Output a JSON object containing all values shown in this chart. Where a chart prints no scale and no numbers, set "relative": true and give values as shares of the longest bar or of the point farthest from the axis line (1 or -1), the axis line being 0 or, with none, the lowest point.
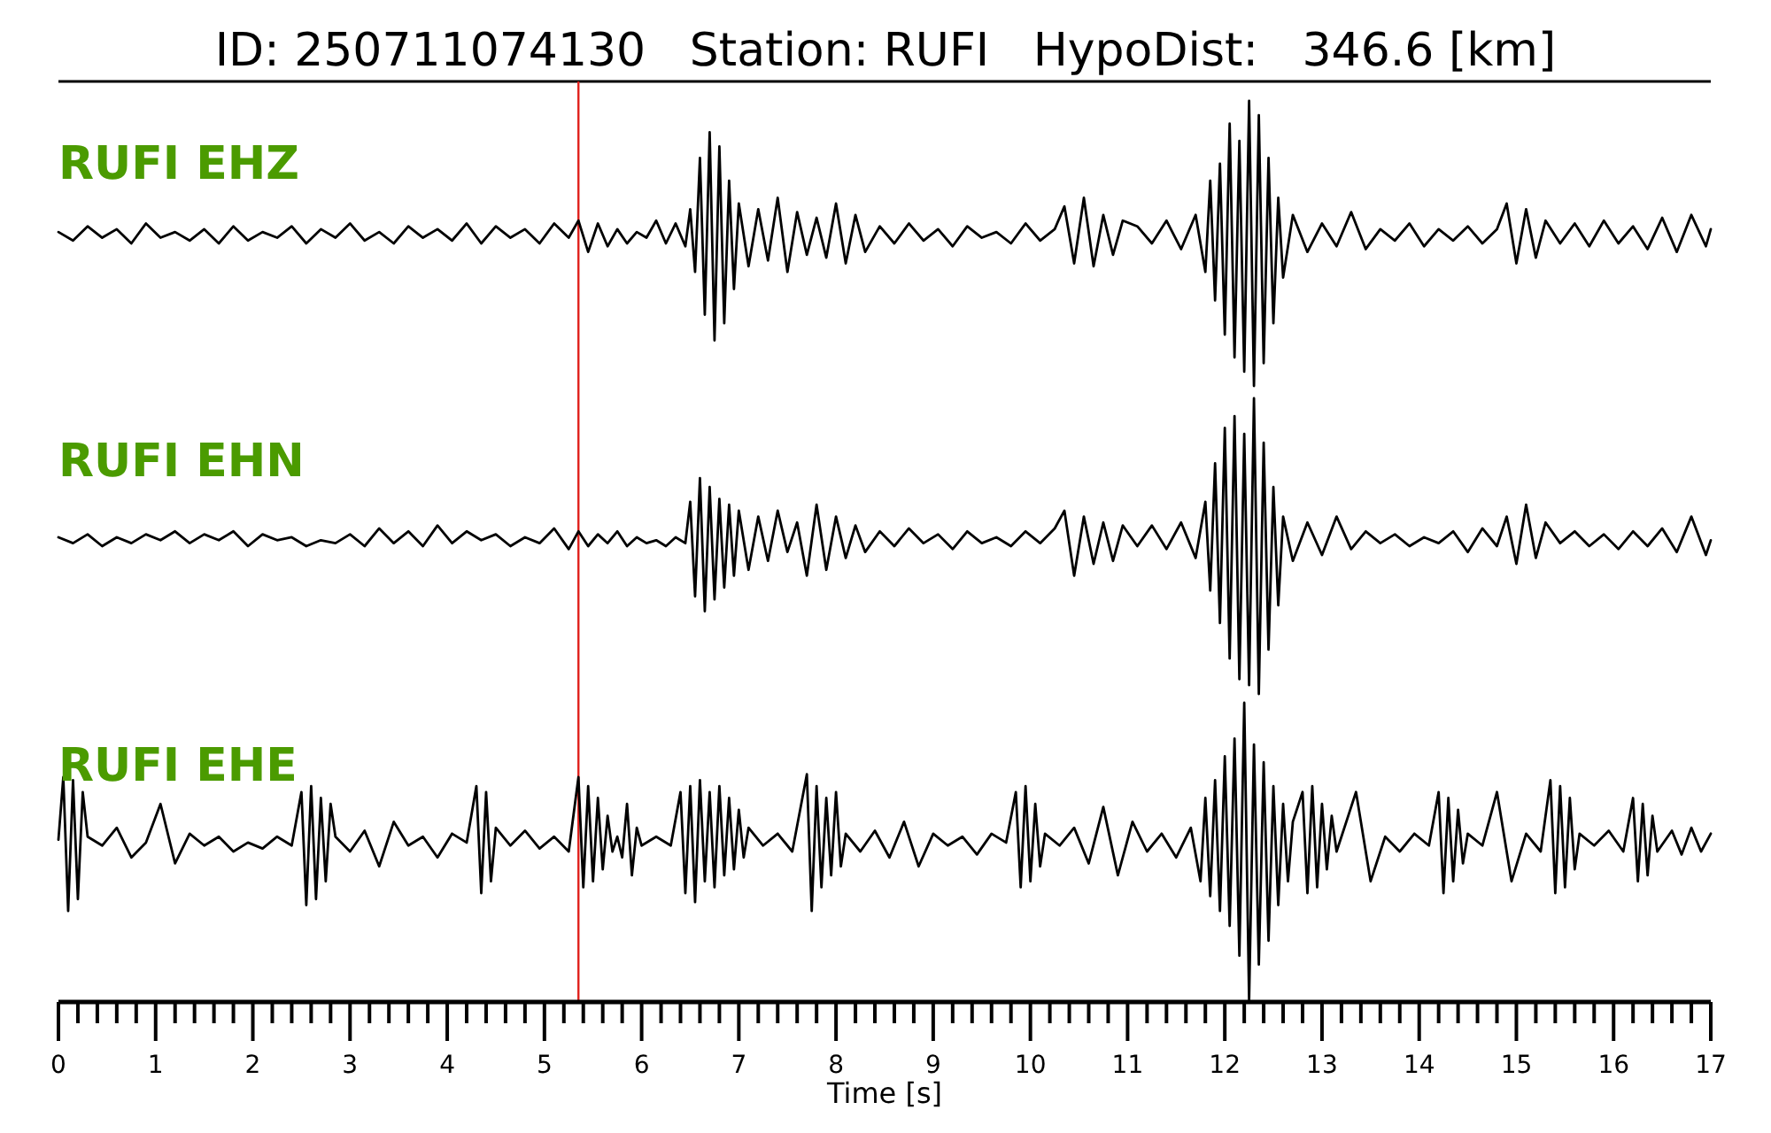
{
  "chart_data": [
    {
      "type": "line",
      "relative": true,
      "title": "RUFI EHZ",
      "annotations": [
        "ID: 250711074130   Station: RUFI   HypoDist:   346.6 [km]"
      ],
      "xlim": [
        0,
        17
      ],
      "tick_labels": false,
      "ref_lines": [
        {
          "axis": "x",
          "value": 5.35,
          "color": "#e0211d"
        }
      ],
      "x": [
        0,
        0.15,
        0.3,
        0.45,
        0.6,
        0.75,
        0.9,
        1.05,
        1.2,
        1.35,
        1.5,
        1.65,
        1.8,
        1.95,
        2.1,
        2.25,
        2.4,
        2.55,
        2.7,
        2.85,
        3.0,
        3.15,
        3.3,
        3.45,
        3.6,
        3.75,
        3.9,
        4.05,
        4.2,
        4.35,
        4.5,
        4.65,
        4.8,
        4.95,
        5.1,
        5.25,
        5.35,
        5.45,
        5.55,
        5.65,
        5.75,
        5.85,
        5.95,
        6.05,
        6.15,
        6.25,
        6.35,
        6.45,
        6.5,
        6.55,
        6.6,
        6.65,
        6.7,
        6.75,
        6.8,
        6.85,
        6.9,
        6.95,
        7.0,
        7.1,
        7.2,
        7.3,
        7.4,
        7.5,
        7.6,
        7.7,
        7.8,
        7.9,
        8.0,
        8.1,
        8.2,
        8.3,
        8.45,
        8.6,
        8.75,
        8.9,
        9.05,
        9.2,
        9.35,
        9.5,
        9.65,
        9.8,
        9.95,
        10.1,
        10.25,
        10.35,
        10.45,
        10.55,
        10.65,
        10.75,
        10.85,
        10.95,
        11.1,
        11.25,
        11.4,
        11.55,
        11.7,
        11.8,
        11.85,
        11.9,
        11.95,
        12.0,
        12.05,
        12.1,
        12.15,
        12.2,
        12.25,
        12.3,
        12.35,
        12.4,
        12.45,
        12.5,
        12.55,
        12.6,
        12.7,
        12.85,
        13.0,
        13.15,
        13.3,
        13.45,
        13.6,
        13.75,
        13.9,
        14.05,
        14.2,
        14.35,
        14.5,
        14.65,
        14.8,
        14.9,
        15.0,
        15.1,
        15.2,
        15.3,
        15.45,
        15.6,
        15.75,
        15.9,
        16.05,
        16.2,
        16.35,
        16.5,
        16.65,
        16.8,
        16.95,
        17
      ],
      "series": [
        {
          "color": "#000000",
          "values": [
            0.54,
            0.51,
            0.56,
            0.52,
            0.55,
            0.5,
            0.57,
            0.52,
            0.54,
            0.51,
            0.55,
            0.5,
            0.56,
            0.51,
            0.54,
            0.52,
            0.56,
            0.5,
            0.55,
            0.52,
            0.57,
            0.51,
            0.54,
            0.5,
            0.56,
            0.52,
            0.55,
            0.51,
            0.57,
            0.5,
            0.56,
            0.52,
            0.55,
            0.5,
            0.57,
            0.52,
            0.58,
            0.47,
            0.57,
            0.49,
            0.55,
            0.5,
            0.54,
            0.52,
            0.58,
            0.5,
            0.57,
            0.49,
            0.62,
            0.4,
            0.8,
            0.25,
            0.89,
            0.16,
            0.84,
            0.22,
            0.72,
            0.34,
            0.64,
            0.42,
            0.62,
            0.44,
            0.66,
            0.4,
            0.61,
            0.46,
            0.59,
            0.45,
            0.64,
            0.43,
            0.6,
            0.47,
            0.56,
            0.5,
            0.57,
            0.51,
            0.55,
            0.49,
            0.56,
            0.52,
            0.54,
            0.5,
            0.57,
            0.51,
            0.55,
            0.63,
            0.43,
            0.66,
            0.42,
            0.6,
            0.46,
            0.58,
            0.56,
            0.5,
            0.58,
            0.48,
            0.6,
            0.4,
            0.72,
            0.3,
            0.78,
            0.18,
            0.92,
            0.1,
            0.86,
            0.05,
            1.0,
            0.0,
            0.95,
            0.08,
            0.8,
            0.22,
            0.66,
            0.38,
            0.6,
            0.47,
            0.57,
            0.49,
            0.61,
            0.48,
            0.55,
            0.51,
            0.57,
            0.49,
            0.55,
            0.51,
            0.56,
            0.5,
            0.55,
            0.64,
            0.43,
            0.62,
            0.45,
            0.58,
            0.5,
            0.57,
            0.49,
            0.58,
            0.5,
            0.56,
            0.48,
            0.59,
            0.47,
            0.6,
            0.49,
            0.55
          ]
        }
      ]
    },
    {
      "type": "line",
      "relative": true,
      "title": "RUFI EHN",
      "xlim": [
        0,
        17
      ],
      "tick_labels": false,
      "ref_lines": [
        {
          "axis": "x",
          "value": 5.35,
          "color": "#e0211d"
        }
      ],
      "x": [
        0,
        0.15,
        0.3,
        0.45,
        0.6,
        0.75,
        0.9,
        1.05,
        1.2,
        1.35,
        1.5,
        1.65,
        1.8,
        1.95,
        2.1,
        2.25,
        2.4,
        2.55,
        2.7,
        2.85,
        3.0,
        3.15,
        3.3,
        3.45,
        3.6,
        3.75,
        3.9,
        4.05,
        4.2,
        4.35,
        4.5,
        4.65,
        4.8,
        4.95,
        5.1,
        5.25,
        5.35,
        5.45,
        5.55,
        5.65,
        5.75,
        5.85,
        5.95,
        6.05,
        6.15,
        6.25,
        6.35,
        6.45,
        6.5,
        6.55,
        6.6,
        6.65,
        6.7,
        6.75,
        6.8,
        6.85,
        6.9,
        6.95,
        7.0,
        7.1,
        7.2,
        7.3,
        7.4,
        7.5,
        7.6,
        7.7,
        7.8,
        7.9,
        8.0,
        8.1,
        8.2,
        8.3,
        8.45,
        8.6,
        8.75,
        8.9,
        9.05,
        9.2,
        9.35,
        9.5,
        9.65,
        9.8,
        9.95,
        10.1,
        10.25,
        10.35,
        10.45,
        10.55,
        10.65,
        10.75,
        10.85,
        10.95,
        11.1,
        11.25,
        11.4,
        11.55,
        11.7,
        11.8,
        11.85,
        11.9,
        11.95,
        12.0,
        12.05,
        12.1,
        12.15,
        12.2,
        12.25,
        12.3,
        12.35,
        12.4,
        12.45,
        12.5,
        12.55,
        12.6,
        12.7,
        12.85,
        13.0,
        13.15,
        13.3,
        13.45,
        13.6,
        13.75,
        13.9,
        14.05,
        14.2,
        14.35,
        14.5,
        14.65,
        14.8,
        14.9,
        15.0,
        15.1,
        15.2,
        15.3,
        15.45,
        15.6,
        15.75,
        15.9,
        16.05,
        16.2,
        16.35,
        16.5,
        16.65,
        16.8,
        16.95,
        17
      ],
      "series": [
        {
          "color": "#000000",
          "values": [
            0.53,
            0.51,
            0.54,
            0.5,
            0.53,
            0.51,
            0.54,
            0.52,
            0.55,
            0.51,
            0.54,
            0.52,
            0.55,
            0.5,
            0.54,
            0.52,
            0.53,
            0.5,
            0.52,
            0.51,
            0.54,
            0.5,
            0.56,
            0.51,
            0.55,
            0.5,
            0.57,
            0.51,
            0.55,
            0.52,
            0.54,
            0.5,
            0.53,
            0.51,
            0.56,
            0.49,
            0.55,
            0.5,
            0.54,
            0.51,
            0.55,
            0.5,
            0.53,
            0.51,
            0.52,
            0.5,
            0.53,
            0.51,
            0.65,
            0.33,
            0.73,
            0.28,
            0.7,
            0.32,
            0.66,
            0.36,
            0.64,
            0.4,
            0.62,
            0.42,
            0.6,
            0.45,
            0.62,
            0.48,
            0.58,
            0.4,
            0.64,
            0.42,
            0.6,
            0.46,
            0.57,
            0.48,
            0.55,
            0.5,
            0.56,
            0.51,
            0.54,
            0.49,
            0.55,
            0.51,
            0.53,
            0.5,
            0.55,
            0.51,
            0.56,
            0.62,
            0.4,
            0.6,
            0.44,
            0.58,
            0.45,
            0.57,
            0.5,
            0.57,
            0.49,
            0.58,
            0.46,
            0.65,
            0.35,
            0.78,
            0.24,
            0.9,
            0.12,
            0.94,
            0.05,
            0.88,
            0.03,
            1.0,
            0.0,
            0.85,
            0.15,
            0.7,
            0.3,
            0.6,
            0.45,
            0.58,
            0.47,
            0.6,
            0.49,
            0.55,
            0.51,
            0.54,
            0.5,
            0.53,
            0.51,
            0.55,
            0.48,
            0.56,
            0.5,
            0.6,
            0.44,
            0.64,
            0.46,
            0.58,
            0.51,
            0.55,
            0.5,
            0.54,
            0.49,
            0.55,
            0.5,
            0.56,
            0.48,
            0.6,
            0.47,
            0.52
          ]
        }
      ]
    },
    {
      "type": "line",
      "relative": true,
      "title": "RUFI EHE",
      "xlabel": "Time [s]",
      "xlim": [
        0,
        17
      ],
      "tick_labels": "x",
      "xticks": [
        0,
        {
          "value": 0.2,
          "label": null
        },
        {
          "value": 0.4,
          "label": null
        },
        {
          "value": 0.6,
          "label": null
        },
        {
          "value": 0.8,
          "label": null
        },
        1,
        {
          "value": 1.2,
          "label": null
        },
        {
          "value": 1.4,
          "label": null
        },
        {
          "value": 1.6,
          "label": null
        },
        {
          "value": 1.8,
          "label": null
        },
        2,
        {
          "value": 2.2,
          "label": null
        },
        {
          "value": 2.4,
          "label": null
        },
        {
          "value": 2.6,
          "label": null
        },
        {
          "value": 2.8,
          "label": null
        },
        3,
        {
          "value": 3.2,
          "label": null
        },
        {
          "value": 3.4,
          "label": null
        },
        {
          "value": 3.6,
          "label": null
        },
        {
          "value": 3.8,
          "label": null
        },
        4,
        {
          "value": 4.2,
          "label": null
        },
        {
          "value": 4.4,
          "label": null
        },
        {
          "value": 4.6,
          "label": null
        },
        {
          "value": 4.8,
          "label": null
        },
        5,
        {
          "value": 5.2,
          "label": null
        },
        {
          "value": 5.4,
          "label": null
        },
        {
          "value": 5.6,
          "label": null
        },
        {
          "value": 5.8,
          "label": null
        },
        6,
        {
          "value": 6.2,
          "label": null
        },
        {
          "value": 6.4,
          "label": null
        },
        {
          "value": 6.6,
          "label": null
        },
        {
          "value": 6.8,
          "label": null
        },
        7,
        {
          "value": 7.2,
          "label": null
        },
        {
          "value": 7.4,
          "label": null
        },
        {
          "value": 7.6,
          "label": null
        },
        {
          "value": 7.8,
          "label": null
        },
        8,
        {
          "value": 8.2,
          "label": null
        },
        {
          "value": 8.4,
          "label": null
        },
        {
          "value": 8.6,
          "label": null
        },
        {
          "value": 8.8,
          "label": null
        },
        9,
        {
          "value": 9.2,
          "label": null
        },
        {
          "value": 9.4,
          "label": null
        },
        {
          "value": 9.6,
          "label": null
        },
        {
          "value": 9.8,
          "label": null
        },
        10,
        {
          "value": 10.2,
          "label": null
        },
        {
          "value": 10.4,
          "label": null
        },
        {
          "value": 10.6,
          "label": null
        },
        {
          "value": 10.8,
          "label": null
        },
        11,
        {
          "value": 11.2,
          "label": null
        },
        {
          "value": 11.4,
          "label": null
        },
        {
          "value": 11.6,
          "label": null
        },
        {
          "value": 11.8,
          "label": null
        },
        12,
        {
          "value": 12.2,
          "label": null
        },
        {
          "value": 12.4,
          "label": null
        },
        {
          "value": 12.6,
          "label": null
        },
        {
          "value": 12.8,
          "label": null
        },
        13,
        {
          "value": 13.2,
          "label": null
        },
        {
          "value": 13.4,
          "label": null
        },
        {
          "value": 13.6,
          "label": null
        },
        {
          "value": 13.8,
          "label": null
        },
        14,
        {
          "value": 14.2,
          "label": null
        },
        {
          "value": 14.4,
          "label": null
        },
        {
          "value": 14.6,
          "label": null
        },
        {
          "value": 14.8,
          "label": null
        },
        15,
        {
          "value": 15.2,
          "label": null
        },
        {
          "value": 15.4,
          "label": null
        },
        {
          "value": 15.6,
          "label": null
        },
        {
          "value": 15.8,
          "label": null
        },
        16,
        {
          "value": 16.2,
          "label": null
        },
        {
          "value": 16.4,
          "label": null
        },
        {
          "value": 16.6,
          "label": null
        },
        {
          "value": 16.8,
          "label": null
        },
        17
      ],
      "ref_lines": [
        {
          "axis": "x",
          "value": 5.35,
          "color": "#e0211d"
        }
      ],
      "x": [
        0,
        0.05,
        0.1,
        0.15,
        0.2,
        0.25,
        0.3,
        0.45,
        0.6,
        0.75,
        0.9,
        1.05,
        1.2,
        1.35,
        1.5,
        1.65,
        1.8,
        1.95,
        2.1,
        2.25,
        2.4,
        2.5,
        2.55,
        2.6,
        2.65,
        2.7,
        2.75,
        2.8,
        2.85,
        3.0,
        3.15,
        3.3,
        3.45,
        3.6,
        3.75,
        3.9,
        4.05,
        4.2,
        4.3,
        4.35,
        4.4,
        4.45,
        4.5,
        4.65,
        4.8,
        4.95,
        5.1,
        5.25,
        5.35,
        5.4,
        5.45,
        5.5,
        5.55,
        5.6,
        5.65,
        5.7,
        5.75,
        5.8,
        5.85,
        5.9,
        5.95,
        6.0,
        6.15,
        6.3,
        6.4,
        6.45,
        6.5,
        6.55,
        6.6,
        6.65,
        6.7,
        6.75,
        6.8,
        6.85,
        6.9,
        6.95,
        7.0,
        7.05,
        7.1,
        7.25,
        7.4,
        7.55,
        7.7,
        7.75,
        7.8,
        7.85,
        7.9,
        7.95,
        8.0,
        8.05,
        8.1,
        8.25,
        8.4,
        8.55,
        8.7,
        8.85,
        9.0,
        9.15,
        9.3,
        9.45,
        9.6,
        9.75,
        9.85,
        9.9,
        9.95,
        10.0,
        10.05,
        10.1,
        10.15,
        10.3,
        10.45,
        10.6,
        10.75,
        10.9,
        11.05,
        11.2,
        11.35,
        11.5,
        11.65,
        11.75,
        11.8,
        11.85,
        11.9,
        11.95,
        12.0,
        12.05,
        12.1,
        12.15,
        12.2,
        12.25,
        12.3,
        12.35,
        12.4,
        12.45,
        12.5,
        12.55,
        12.6,
        12.65,
        12.7,
        12.8,
        12.85,
        12.9,
        12.95,
        13.0,
        13.05,
        13.1,
        13.15,
        13.2,
        13.35,
        13.5,
        13.65,
        13.8,
        13.95,
        14.1,
        14.2,
        14.25,
        14.3,
        14.35,
        14.4,
        14.45,
        14.5,
        14.65,
        14.8,
        14.95,
        15.1,
        15.25,
        15.35,
        15.4,
        15.45,
        15.5,
        15.55,
        15.6,
        15.65,
        15.8,
        15.95,
        16.1,
        16.2,
        16.25,
        16.3,
        16.35,
        16.4,
        16.45,
        16.6,
        16.7,
        16.8,
        16.9,
        17.0
      ],
      "series": [
        {
          "color": "#000000",
          "values": [
            0.54,
            0.75,
            0.3,
            0.74,
            0.34,
            0.7,
            0.55,
            0.52,
            0.58,
            0.48,
            0.53,
            0.66,
            0.46,
            0.56,
            0.52,
            0.55,
            0.5,
            0.53,
            0.51,
            0.55,
            0.52,
            0.7,
            0.32,
            0.72,
            0.34,
            0.68,
            0.4,
            0.66,
            0.55,
            0.5,
            0.57,
            0.45,
            0.6,
            0.52,
            0.55,
            0.48,
            0.56,
            0.53,
            0.72,
            0.36,
            0.7,
            0.4,
            0.58,
            0.52,
            0.57,
            0.51,
            0.55,
            0.5,
            0.75,
            0.38,
            0.72,
            0.4,
            0.68,
            0.44,
            0.62,
            0.5,
            0.55,
            0.48,
            0.66,
            0.42,
            0.58,
            0.52,
            0.55,
            0.52,
            0.7,
            0.36,
            0.72,
            0.33,
            0.74,
            0.4,
            0.7,
            0.38,
            0.72,
            0.42,
            0.68,
            0.44,
            0.64,
            0.48,
            0.58,
            0.52,
            0.56,
            0.5,
            0.76,
            0.3,
            0.72,
            0.38,
            0.68,
            0.42,
            0.7,
            0.45,
            0.56,
            0.5,
            0.57,
            0.48,
            0.6,
            0.45,
            0.56,
            0.52,
            0.55,
            0.49,
            0.56,
            0.53,
            0.7,
            0.38,
            0.72,
            0.4,
            0.66,
            0.45,
            0.56,
            0.52,
            0.58,
            0.46,
            0.65,
            0.42,
            0.6,
            0.5,
            0.56,
            0.48,
            0.58,
            0.4,
            0.68,
            0.35,
            0.74,
            0.3,
            0.82,
            0.25,
            0.88,
            0.15,
            1.0,
            0.0,
            0.86,
            0.12,
            0.8,
            0.2,
            0.72,
            0.32,
            0.66,
            0.4,
            0.6,
            0.7,
            0.36,
            0.72,
            0.38,
            0.66,
            0.44,
            0.62,
            0.5,
            0.55,
            0.7,
            0.4,
            0.55,
            0.5,
            0.56,
            0.52,
            0.7,
            0.36,
            0.68,
            0.4,
            0.64,
            0.46,
            0.56,
            0.52,
            0.7,
            0.4,
            0.56,
            0.5,
            0.74,
            0.36,
            0.72,
            0.38,
            0.68,
            0.44,
            0.56,
            0.52,
            0.57,
            0.5,
            0.68,
            0.4,
            0.66,
            0.42,
            0.62,
            0.5,
            0.57,
            0.49,
            0.58,
            0.5,
            0.56
          ]
        }
      ]
    }
  ]
}
